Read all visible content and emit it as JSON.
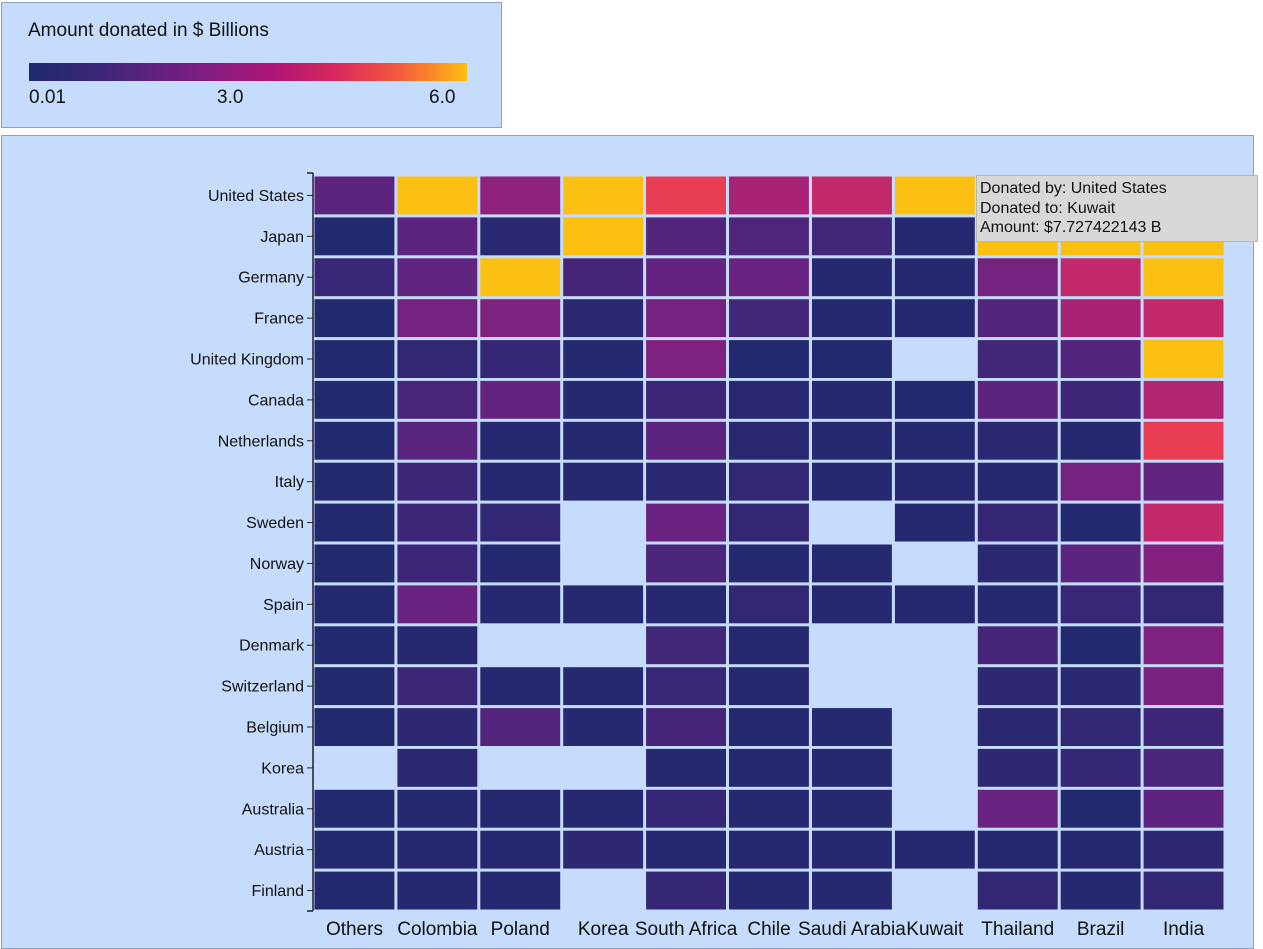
{
  "legend": {
    "title": "Amount donated in $ Billions",
    "ticks": [
      "0.01",
      "3.0",
      "6.0"
    ]
  },
  "tooltip": {
    "donated_by": "Donated by: United States",
    "donated_to": "Donated to: Kuwait",
    "amount": "Amount: $7.727422143 B"
  },
  "chart_data": {
    "type": "heatmap",
    "title": "Amount donated in $ Billions",
    "color_scale": {
      "min": 0.01,
      "mid": 3.0,
      "max": 6.0,
      "colors": [
        "#1f2a6e",
        "#7a1f82",
        "#d9275d",
        "#fcc013"
      ]
    },
    "x": [
      "Others",
      "Colombia",
      "Poland",
      "Korea",
      "South Africa",
      "Chile",
      "Saudi Arabia",
      "Kuwait",
      "Thailand",
      "Brazil",
      "India"
    ],
    "y": [
      "United States",
      "Japan",
      "Germany",
      "France",
      "United Kingdom",
      "Canada",
      "Netherlands",
      "Italy",
      "Sweden",
      "Norway",
      "Spain",
      "Denmark",
      "Switzerland",
      "Belgium",
      "Korea",
      "Australia",
      "Austria",
      "Finland"
    ],
    "values": [
      [
        1.5,
        6.5,
        2.5,
        6.5,
        4.5,
        3.0,
        3.5,
        7.727422143,
        6.5,
        6.5,
        6.5
      ],
      [
        0.1,
        1.5,
        0.3,
        6.5,
        1.3,
        1.2,
        0.9,
        0.2,
        6.5,
        6.5,
        6.5
      ],
      [
        0.7,
        1.6,
        6.5,
        1.0,
        1.7,
        1.8,
        0.2,
        0.2,
        2.0,
        3.5,
        6.5
      ],
      [
        0.1,
        2.0,
        2.2,
        0.3,
        2.0,
        0.9,
        0.2,
        0.2,
        1.3,
        3.0,
        3.5
      ],
      [
        0.1,
        0.5,
        0.6,
        0.2,
        2.2,
        0.1,
        0.1,
        null,
        0.9,
        1.3,
        6.5
      ],
      [
        0.1,
        1.1,
        1.7,
        0.2,
        0.8,
        0.3,
        0.2,
        0.1,
        1.5,
        0.8,
        3.2
      ],
      [
        0.1,
        1.4,
        0.2,
        0.2,
        1.5,
        0.3,
        0.2,
        0.2,
        0.3,
        0.2,
        4.5
      ],
      [
        0.1,
        0.8,
        0.2,
        0.2,
        0.3,
        0.5,
        0.2,
        0.2,
        0.2,
        2.0,
        1.6
      ],
      [
        0.1,
        0.8,
        0.5,
        null,
        1.8,
        0.5,
        null,
        0.2,
        0.6,
        0.1,
        3.5
      ],
      [
        0.1,
        0.8,
        0.2,
        null,
        1.1,
        0.2,
        0.2,
        null,
        0.3,
        1.5,
        2.3
      ],
      [
        0.1,
        1.8,
        0.2,
        0.2,
        0.2,
        0.5,
        0.2,
        0.2,
        0.2,
        0.7,
        0.5
      ],
      [
        0.1,
        0.2,
        null,
        null,
        0.9,
        0.2,
        null,
        null,
        1.0,
        0.1,
        2.2
      ],
      [
        0.1,
        0.8,
        0.2,
        0.2,
        0.7,
        0.2,
        null,
        null,
        0.4,
        0.3,
        2.1
      ],
      [
        0.1,
        0.4,
        1.3,
        0.2,
        1.0,
        0.2,
        0.2,
        null,
        0.3,
        0.5,
        0.8
      ],
      [
        null,
        0.3,
        null,
        null,
        0.2,
        0.2,
        0.2,
        null,
        0.4,
        0.6,
        1.1
      ],
      [
        0.1,
        0.2,
        0.2,
        0.2,
        0.6,
        0.2,
        0.2,
        null,
        1.8,
        0.1,
        1.5
      ],
      [
        0.1,
        0.2,
        0.2,
        0.4,
        0.2,
        0.2,
        0.2,
        0.2,
        0.2,
        0.2,
        0.4
      ],
      [
        0.1,
        0.2,
        0.2,
        null,
        0.6,
        0.2,
        0.2,
        null,
        0.5,
        0.2,
        0.5
      ]
    ]
  }
}
